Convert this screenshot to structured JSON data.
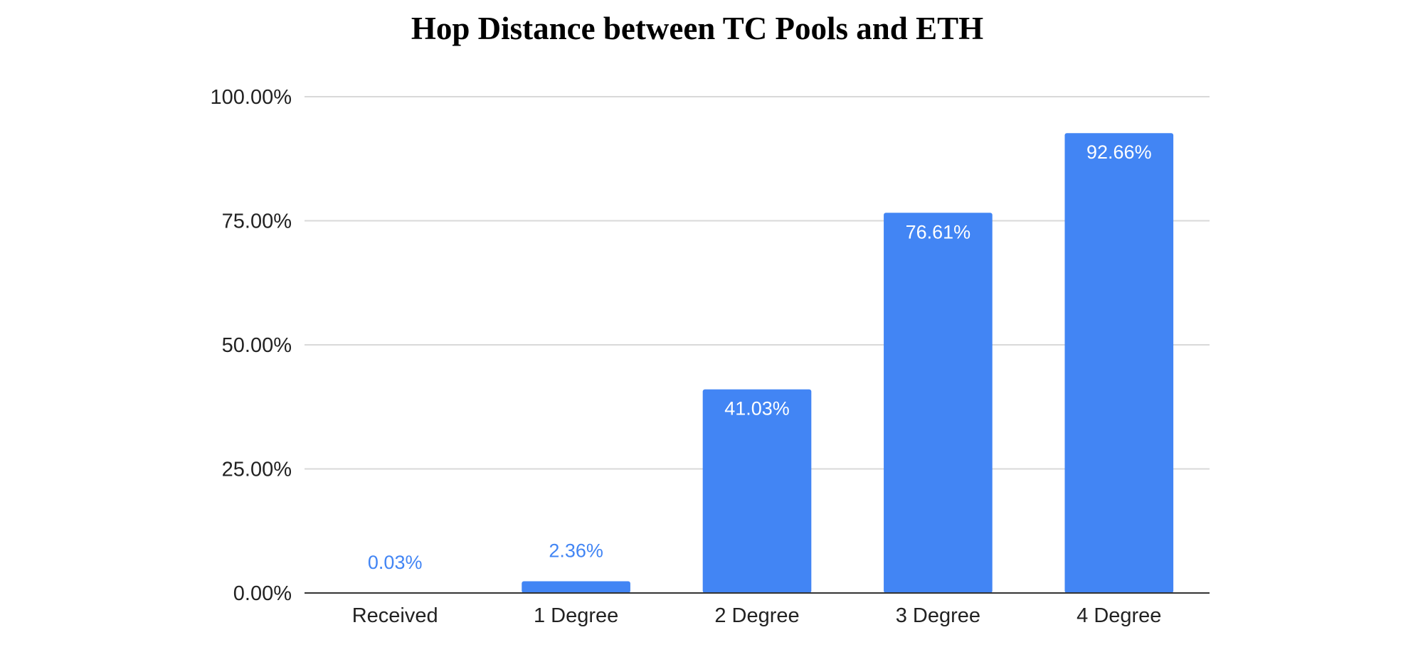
{
  "chart_data": {
    "type": "bar",
    "title": "Hop Distance between TC Pools and ETH",
    "xlabel": "",
    "ylabel": "",
    "categories": [
      "Received",
      "1 Degree",
      "2 Degree",
      "3 Degree",
      "4 Degree"
    ],
    "values": [
      0.03,
      2.36,
      41.03,
      76.61,
      92.66
    ],
    "value_labels": [
      "0.03%",
      "2.36%",
      "41.03%",
      "76.61%",
      "92.66%"
    ],
    "ylim": [
      0,
      100
    ],
    "yticks": [
      0,
      25,
      50,
      75,
      100
    ],
    "ytick_labels": [
      "0.00%",
      "25.00%",
      "50.00%",
      "75.00%",
      "100.00%"
    ],
    "grid": true,
    "legend": "none",
    "colors": {
      "bar": "#4285f4",
      "label_inside": "#ffffff",
      "label_outside": "#4285f4",
      "grid": "#d9d9d9",
      "axis": "#333333"
    }
  }
}
